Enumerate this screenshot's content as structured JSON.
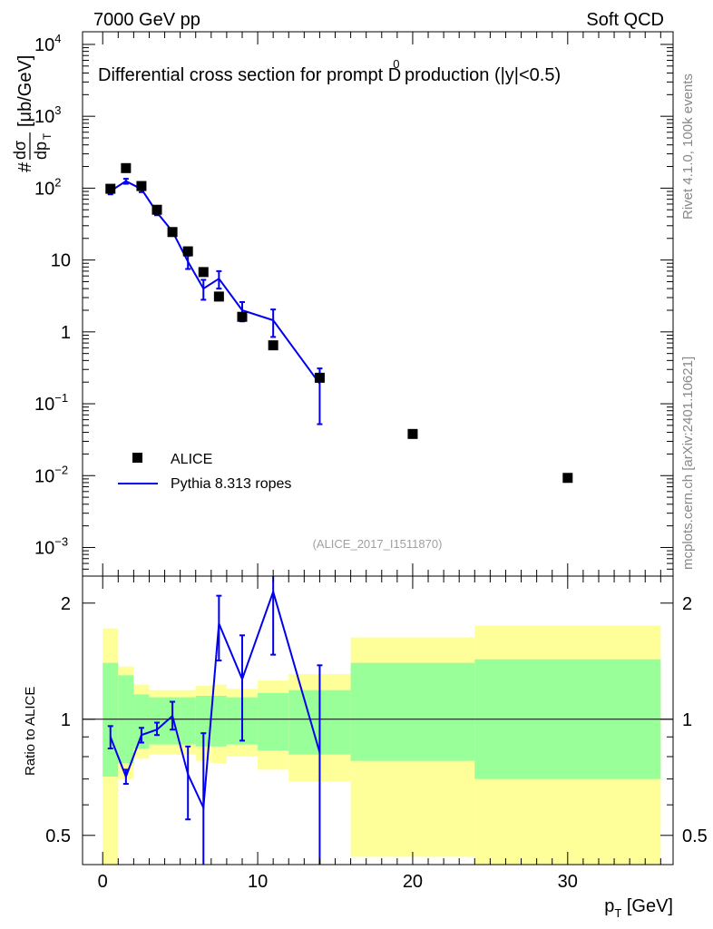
{
  "header": {
    "left": "7000 GeV pp",
    "right": "Soft QCD"
  },
  "side_labels": {
    "rivet": "Rivet 4.1.0,  100k events",
    "mcplots": "mcplots.cern.ch [arXiv:2401.10621]"
  },
  "chart_data": [
    {
      "type": "scatter",
      "title": "Differential cross section for prompt D",
      "title_superscript": "0",
      "title_suffix": " production (|y|<0.5)",
      "analysis_tag": "(ALICE_2017_I1511870)",
      "xlabel": "p",
      "xlabel_sub": "T",
      "xlabel_unit": " [GeV]",
      "ylabel": "dσ/dp_T [μb/GeV]",
      "ylabel_parts": {
        "hash": "#",
        "num": "dσ",
        "den": "dp",
        "den_sub": "T",
        "unit": "[μb/GeV]"
      },
      "yscale": "log",
      "xlim": [
        -1.3,
        36.8
      ],
      "ylim": [
        0.0004,
        15000
      ],
      "ytick_labels": [
        {
          "v": 1000,
          "base": "10",
          "exp": "3"
        },
        {
          "v": 100,
          "base": "10",
          "exp": "2"
        },
        {
          "v": 10,
          "base": "10",
          "exp": ""
        },
        {
          "v": 1,
          "base": "1",
          "exp": ""
        },
        {
          "v": 0.1,
          "base": "10",
          "exp": "−1"
        },
        {
          "v": 0.01,
          "base": "10",
          "exp": "−2"
        },
        {
          "v": 0.001,
          "base": "10",
          "exp": "−3"
        },
        {
          "v": 10000,
          "base": "10",
          "exp": "4"
        }
      ],
      "legend": [
        {
          "name": "ALICE",
          "style": "marker"
        },
        {
          "name": "Pythia 8.313 ropes",
          "style": "line",
          "color": "#0000ee"
        }
      ],
      "series": [
        {
          "name": "ALICE",
          "x": [
            0.5,
            1.5,
            2.5,
            3.5,
            4.5,
            5.5,
            6.5,
            7.5,
            9.0,
            11.0,
            14.0,
            20.0,
            30.0
          ],
          "y": [
            98,
            190,
            107,
            50,
            24.5,
            13.2,
            6.8,
            3.1,
            1.62,
            0.65,
            0.23,
            0.038,
            0.0093
          ]
        },
        {
          "name": "Pythia 8.313 ropes",
          "x": [
            0.5,
            1.5,
            2.5,
            3.5,
            4.5,
            5.5,
            6.5,
            7.5,
            9.0,
            11.0,
            14.0
          ],
          "y": [
            91,
            125,
            97,
            46,
            25,
            9.5,
            4.0,
            5.5,
            2.0,
            1.45,
            0.19
          ],
          "err_low": [
            82,
            115,
            88,
            42,
            22.5,
            7.5,
            2.8,
            4.0,
            1.4,
            0.85,
            0.052
          ],
          "err_high": [
            100,
            135,
            106,
            50,
            27.5,
            11.5,
            5.3,
            7.0,
            2.6,
            2.05,
            0.31
          ]
        }
      ]
    },
    {
      "type": "line",
      "ylabel": "Ratio to ALICE",
      "xlabel": "p_T [GeV]",
      "yscale": "log",
      "xlim": [
        -1.3,
        36.8
      ],
      "ylim": [
        0.42,
        2.35
      ],
      "ytick_labels": [
        "0.5",
        "1",
        "2"
      ],
      "xtick_labels": [
        "0",
        "10",
        "20",
        "30"
      ],
      "bands": [
        {
          "xlo": 0,
          "xhi": 1,
          "yellow": [
            0.37,
            1.72
          ],
          "green": [
            0.71,
            1.4
          ]
        },
        {
          "xlo": 1,
          "xhi": 2,
          "yellow": [
            0.7,
            1.37
          ],
          "green": [
            0.77,
            1.3
          ]
        },
        {
          "xlo": 2,
          "xhi": 3,
          "yellow": [
            0.79,
            1.23
          ],
          "green": [
            0.84,
            1.16
          ]
        },
        {
          "xlo": 3,
          "xhi": 4,
          "yellow": [
            0.81,
            1.19
          ],
          "green": [
            0.86,
            1.14
          ]
        },
        {
          "xlo": 4,
          "xhi": 5,
          "yellow": [
            0.81,
            1.19
          ],
          "green": [
            0.86,
            1.14
          ]
        },
        {
          "xlo": 5,
          "xhi": 6,
          "yellow": [
            0.81,
            1.19
          ],
          "green": [
            0.86,
            1.14
          ]
        },
        {
          "xlo": 6,
          "xhi": 7,
          "yellow": [
            0.78,
            1.22
          ],
          "green": [
            0.85,
            1.15
          ]
        },
        {
          "xlo": 7,
          "xhi": 8,
          "yellow": [
            0.77,
            1.23
          ],
          "green": [
            0.85,
            1.15
          ]
        },
        {
          "xlo": 8,
          "xhi": 10,
          "yellow": [
            0.8,
            1.2
          ],
          "green": [
            0.86,
            1.14
          ]
        },
        {
          "xlo": 10,
          "xhi": 12,
          "yellow": [
            0.74,
            1.26
          ],
          "green": [
            0.83,
            1.17
          ]
        },
        {
          "xlo": 12,
          "xhi": 16,
          "yellow": [
            0.69,
            1.31
          ],
          "green": [
            0.81,
            1.19
          ]
        },
        {
          "xlo": 16,
          "xhi": 24,
          "yellow": [
            0.44,
            1.63
          ],
          "green": [
            0.78,
            1.4
          ]
        },
        {
          "xlo": 24,
          "xhi": 36,
          "yellow": [
            0.34,
            1.75
          ],
          "green": [
            0.7,
            1.43
          ]
        }
      ],
      "series": [
        {
          "name": "Pythia 8.313 ropes / ALICE",
          "x": [
            0.5,
            1.5,
            2.5,
            3.5,
            4.5,
            5.5,
            6.5,
            7.5,
            9.0,
            11.0,
            14.0
          ],
          "y": [
            0.9,
            0.71,
            0.91,
            0.94,
            1.02,
            0.72,
            0.59,
            1.77,
            1.27,
            2.14,
            0.82
          ],
          "err_low": [
            0.84,
            0.68,
            0.87,
            0.91,
            0.94,
            0.55,
            0.3,
            1.42,
            0.88,
            1.47,
            0.22
          ],
          "err_high": [
            0.96,
            0.74,
            0.95,
            0.98,
            1.11,
            0.85,
            0.92,
            2.09,
            1.65,
            2.45,
            1.38
          ]
        }
      ]
    }
  ]
}
